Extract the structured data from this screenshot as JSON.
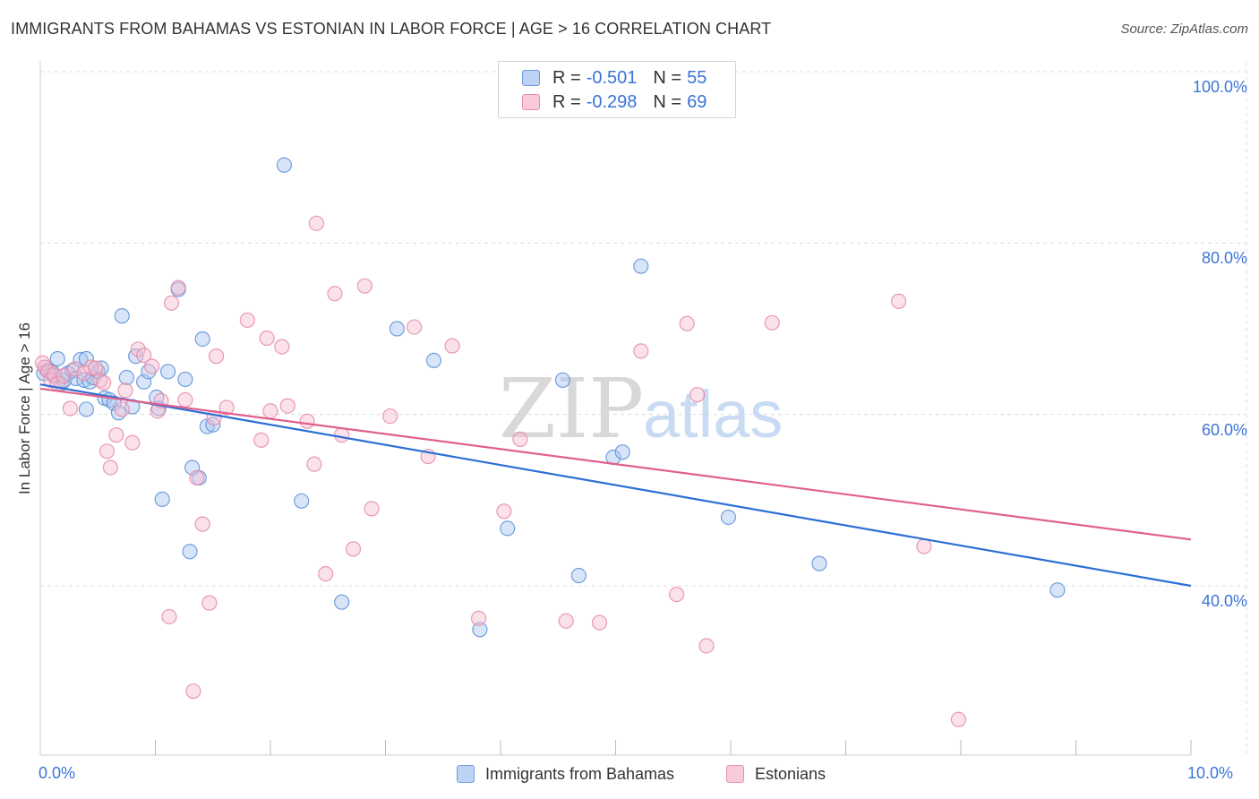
{
  "header": {
    "title": "IMMIGRANTS FROM BAHAMAS VS ESTONIAN IN LABOR FORCE | AGE > 16 CORRELATION CHART",
    "source": "Source: ZipAtlas.com"
  },
  "legend": {
    "series1": {
      "r_label": "R =",
      "r_value": "-0.501",
      "n_label": "N =",
      "n_value": "55"
    },
    "series2": {
      "r_label": "R =",
      "r_value": "-0.298",
      "n_label": "N =",
      "n_value": "69"
    }
  },
  "watermark": {
    "part1": "ZIP",
    "part2": "atlas"
  },
  "colors": {
    "blue_fill": "#a8c6ef",
    "blue_stroke": "#5b8fd8",
    "blue_line": "#2b6fd6",
    "pink_fill": "#f7bdd0",
    "pink_stroke": "#e48aa8",
    "pink_line": "#e0608e",
    "tick_label": "#3a74d6",
    "grid": "#dcdcdc"
  },
  "chart_data": {
    "type": "scatter",
    "ylabel": "In Labor Force | Age > 16",
    "xlabel": "",
    "xlim": [
      0,
      10
    ],
    "ylim": [
      20,
      102
    ],
    "x_tick_labels": {
      "min": "0.0%",
      "max": "10.0%"
    },
    "y_ticks": [
      {
        "value": 40,
        "label": "40.0%"
      },
      {
        "value": 60,
        "label": "60.0%"
      },
      {
        "value": 80,
        "label": "80.0%"
      },
      {
        "value": 100,
        "label": "100.0%"
      }
    ],
    "grid": true,
    "series": [
      {
        "name": "Immigrants from Bahamas",
        "color": "blue",
        "trend": {
          "x": [
            0.0,
            10.0
          ],
          "y": [
            63.5,
            40.0
          ]
        },
        "points": [
          [
            0.03,
            64.8
          ],
          [
            0.06,
            65.2
          ],
          [
            0.1,
            65.0
          ],
          [
            0.12,
            64.5
          ],
          [
            0.15,
            66.5
          ],
          [
            0.18,
            63.6
          ],
          [
            0.21,
            64.0
          ],
          [
            0.24,
            64.8
          ],
          [
            0.28,
            65.1
          ],
          [
            0.31,
            64.2
          ],
          [
            0.35,
            66.4
          ],
          [
            0.38,
            64.0
          ],
          [
            0.4,
            66.5
          ],
          [
            0.43,
            63.8
          ],
          [
            0.46,
            64.3
          ],
          [
            0.5,
            65.0
          ],
          [
            0.53,
            65.4
          ],
          [
            0.56,
            61.9
          ],
          [
            0.6,
            61.7
          ],
          [
            0.64,
            61.3
          ],
          [
            0.68,
            60.2
          ],
          [
            0.71,
            71.5
          ],
          [
            0.75,
            64.3
          ],
          [
            0.8,
            60.9
          ],
          [
            0.83,
            66.8
          ],
          [
            0.9,
            63.8
          ],
          [
            0.94,
            65.0
          ],
          [
            1.01,
            62.0
          ],
          [
            1.03,
            60.7
          ],
          [
            1.06,
            50.1
          ],
          [
            1.11,
            65.0
          ],
          [
            1.26,
            64.1
          ],
          [
            1.2,
            74.6
          ],
          [
            1.3,
            44.0
          ],
          [
            1.38,
            52.6
          ],
          [
            1.41,
            68.8
          ],
          [
            1.32,
            53.8
          ],
          [
            1.45,
            58.6
          ],
          [
            1.5,
            58.8
          ],
          [
            0.4,
            60.6
          ],
          [
            2.12,
            89.1
          ],
          [
            2.27,
            49.9
          ],
          [
            2.62,
            38.1
          ],
          [
            3.1,
            70.0
          ],
          [
            3.42,
            66.3
          ],
          [
            3.82,
            34.9
          ],
          [
            4.06,
            46.7
          ],
          [
            4.54,
            64.0
          ],
          [
            4.68,
            41.2
          ],
          [
            4.98,
            55.0
          ],
          [
            5.06,
            55.6
          ],
          [
            5.22,
            77.3
          ],
          [
            5.98,
            48.0
          ],
          [
            6.77,
            42.6
          ],
          [
            8.84,
            39.5
          ]
        ]
      },
      {
        "name": "Estonians",
        "color": "pink",
        "trend": {
          "x": [
            0.0,
            10.0
          ],
          "y": [
            63.0,
            45.4
          ]
        },
        "points": [
          [
            0.02,
            66.0
          ],
          [
            0.04,
            65.5
          ],
          [
            0.07,
            65.0
          ],
          [
            0.09,
            64.0
          ],
          [
            0.12,
            64.7
          ],
          [
            0.15,
            63.6
          ],
          [
            0.2,
            64.5
          ],
          [
            0.26,
            60.7
          ],
          [
            0.3,
            65.3
          ],
          [
            0.38,
            64.8
          ],
          [
            0.44,
            65.5
          ],
          [
            0.48,
            65.4
          ],
          [
            0.52,
            64.0
          ],
          [
            0.55,
            63.7
          ],
          [
            0.58,
            55.7
          ],
          [
            0.61,
            53.8
          ],
          [
            0.66,
            57.6
          ],
          [
            0.71,
            60.6
          ],
          [
            0.74,
            62.8
          ],
          [
            0.8,
            56.7
          ],
          [
            0.85,
            67.6
          ],
          [
            0.9,
            66.9
          ],
          [
            0.97,
            65.6
          ],
          [
            1.02,
            60.4
          ],
          [
            1.05,
            61.6
          ],
          [
            1.12,
            36.4
          ],
          [
            1.14,
            73.0
          ],
          [
            1.2,
            74.8
          ],
          [
            1.26,
            61.7
          ],
          [
            1.33,
            27.7
          ],
          [
            1.36,
            52.6
          ],
          [
            1.41,
            47.2
          ],
          [
            1.47,
            38.0
          ],
          [
            1.51,
            59.6
          ],
          [
            1.53,
            66.8
          ],
          [
            1.62,
            60.8
          ],
          [
            1.8,
            71.0
          ],
          [
            1.92,
            57.0
          ],
          [
            1.97,
            68.9
          ],
          [
            2.0,
            60.4
          ],
          [
            2.1,
            67.9
          ],
          [
            2.15,
            61.0
          ],
          [
            2.32,
            59.2
          ],
          [
            2.38,
            54.2
          ],
          [
            2.4,
            82.3
          ],
          [
            2.48,
            41.4
          ],
          [
            2.56,
            74.1
          ],
          [
            2.62,
            57.6
          ],
          [
            2.72,
            44.3
          ],
          [
            2.82,
            75.0
          ],
          [
            2.88,
            49.0
          ],
          [
            3.04,
            59.8
          ],
          [
            3.25,
            70.2
          ],
          [
            3.37,
            55.1
          ],
          [
            3.58,
            68.0
          ],
          [
            3.81,
            36.2
          ],
          [
            4.03,
            48.7
          ],
          [
            4.17,
            57.1
          ],
          [
            4.57,
            35.9
          ],
          [
            4.86,
            35.7
          ],
          [
            5.22,
            67.4
          ],
          [
            5.53,
            39.0
          ],
          [
            5.62,
            70.6
          ],
          [
            5.71,
            62.3
          ],
          [
            5.79,
            33.0
          ],
          [
            6.36,
            70.7
          ],
          [
            7.46,
            73.2
          ],
          [
            7.68,
            44.6
          ],
          [
            7.98,
            24.4
          ]
        ]
      }
    ]
  }
}
